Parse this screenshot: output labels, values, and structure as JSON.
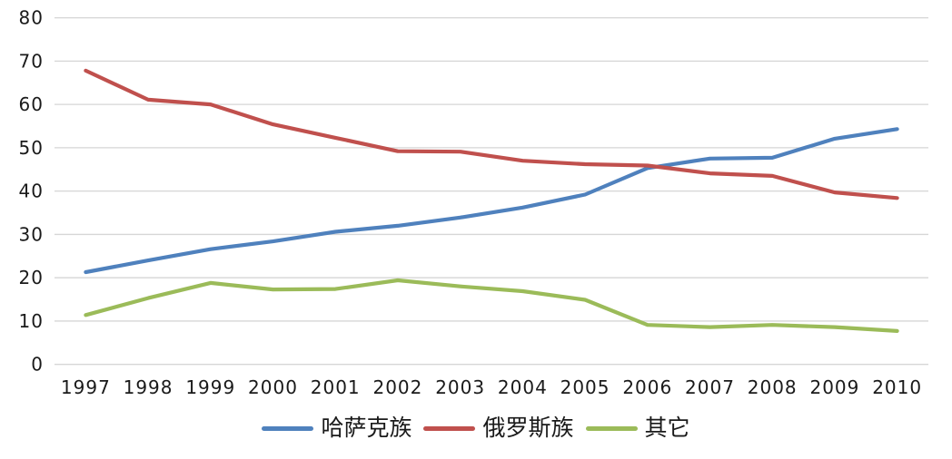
{
  "chart_data": {
    "type": "line",
    "title": "",
    "xlabel": "",
    "ylabel": "",
    "categories": [
      "1997",
      "1998",
      "1999",
      "2000",
      "2001",
      "2002",
      "2003",
      "2004",
      "2005",
      "2006",
      "2007",
      "2008",
      "2009",
      "2010"
    ],
    "series": [
      {
        "name": "哈萨克族",
        "color": "#4F81BD",
        "values": [
          21.3,
          24.0,
          26.6,
          28.4,
          30.6,
          32.0,
          33.9,
          36.2,
          39.2,
          45.3,
          47.5,
          47.7,
          52.1,
          54.3
        ]
      },
      {
        "name": "俄罗斯族",
        "color": "#C0504D",
        "values": [
          67.8,
          61.1,
          60.0,
          55.4,
          52.3,
          49.2,
          49.1,
          47.0,
          46.2,
          45.9,
          44.1,
          43.5,
          39.7,
          38.4
        ]
      },
      {
        "name": "其它",
        "color": "#9BBB59",
        "values": [
          11.4,
          15.3,
          18.8,
          17.3,
          17.4,
          19.4,
          18.0,
          16.9,
          14.9,
          9.1,
          8.6,
          9.1,
          8.6,
          7.7
        ]
      }
    ],
    "ylim": [
      0,
      80
    ],
    "yticks": [
      0,
      10,
      20,
      30,
      40,
      50,
      60,
      70,
      80
    ],
    "grid": true,
    "legend_position": "bottom",
    "gridline_color": "#d6d6d6",
    "axis_text_color": "#1a1a1a",
    "background_color": "#ffffff"
  }
}
